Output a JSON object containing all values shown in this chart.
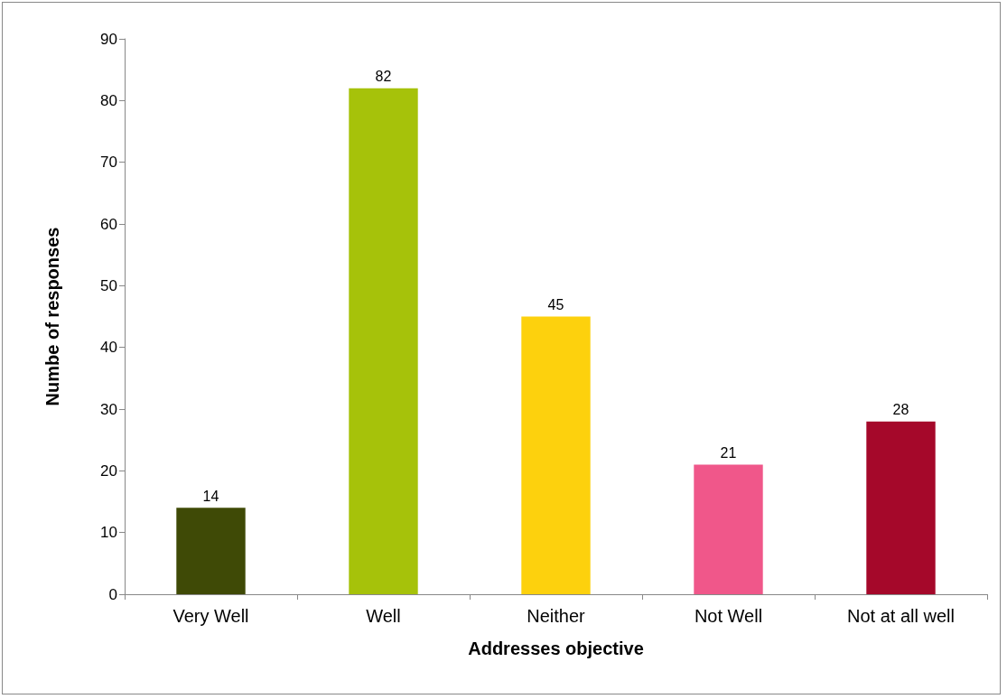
{
  "chart_data": {
    "type": "bar",
    "xlabel": "Addresses objective",
    "ylabel": "Numbe of responses",
    "categories": [
      "Very Well",
      "Well",
      "Neither",
      "Not Well",
      "Not at all well"
    ],
    "values": [
      14,
      82,
      45,
      21,
      28
    ],
    "colors": [
      "#3f4a06",
      "#a6c20a",
      "#fdd10d",
      "#f0578a",
      "#a5082a"
    ],
    "ylim": [
      0,
      90
    ],
    "yticks": [
      0,
      10,
      20,
      30,
      40,
      50,
      60,
      70,
      80,
      90
    ],
    "grid": false,
    "data_labels": true
  }
}
